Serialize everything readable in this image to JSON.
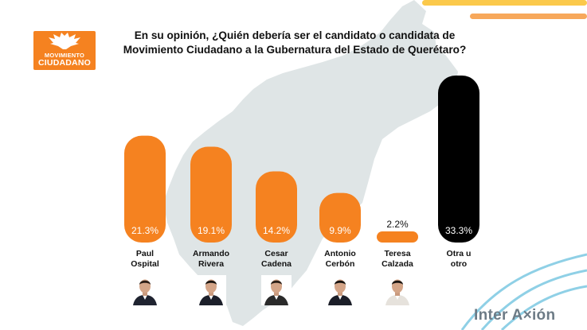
{
  "logo": {
    "line1": "MOVIMIENTO",
    "line2": "CIUDADANO"
  },
  "title": "En su opinión, ¿Quién debería ser el candidato o candidata de Movimiento Ciudadano a la Gubernatura del Estado de Querétaro?",
  "brand": "Inter A×ión",
  "colors": {
    "accent": "#f58220",
    "other": "#000000",
    "map": "#dfe5e6",
    "stripe_yellow": "#fbc94b",
    "stripe_orange": "#f7a85b",
    "wave": "#8fd0e6"
  },
  "chart_data": {
    "type": "bar",
    "categories": [
      "Paul Ospital",
      "Armando Rivera",
      "Cesar Cadena",
      "Antonio Cerbón",
      "Teresa Calzada",
      "Otra u otro"
    ],
    "category_lines": [
      [
        "Paul",
        "Ospital"
      ],
      [
        "Armando",
        "Rivera"
      ],
      [
        "Cesar",
        "Cadena"
      ],
      [
        "Antonio",
        "Cerbón"
      ],
      [
        "Teresa",
        "Calzada"
      ],
      [
        "Otra u",
        "otro"
      ]
    ],
    "values": [
      21.3,
      19.1,
      14.2,
      9.9,
      2.2,
      33.3
    ],
    "value_labels": [
      "21.3%",
      "19.1%",
      "14.2%",
      "9.9%",
      "2.2%",
      "33.3%"
    ],
    "bar_colors": [
      "#f58220",
      "#f58220",
      "#f58220",
      "#f58220",
      "#f58220",
      "#000000"
    ],
    "ylim": [
      0,
      33.3
    ],
    "grid": false,
    "legend": "none"
  },
  "avatars": [
    "person-photo",
    "person-photo",
    "person-photo",
    "person-photo",
    "person-photo",
    "none"
  ]
}
